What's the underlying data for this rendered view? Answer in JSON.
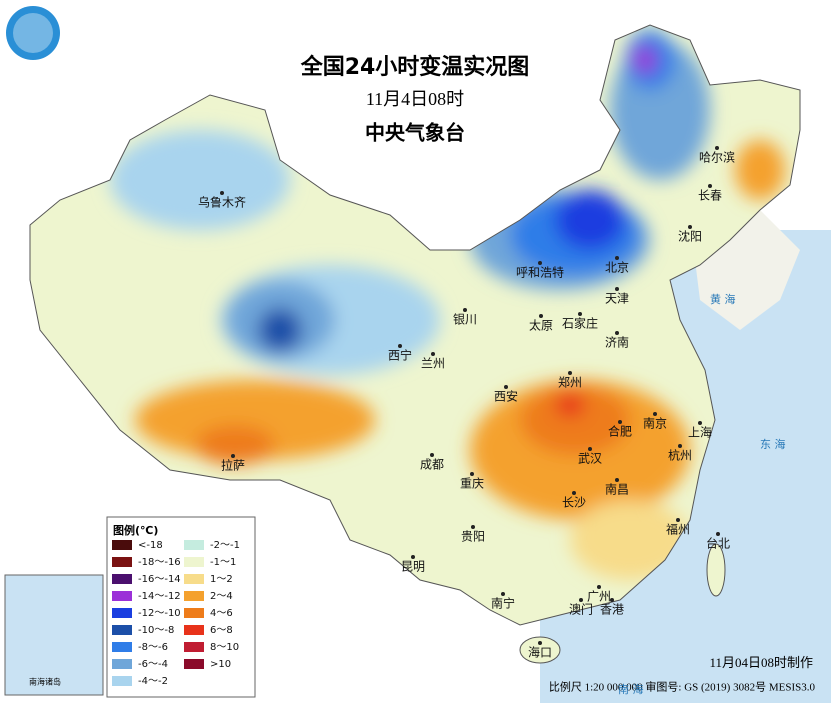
{
  "header": {
    "title": "全国24小时变温实况图",
    "date": "11月4日08时",
    "issuer": "中央气象台"
  },
  "legend": {
    "title": "图例(℃)",
    "items": [
      {
        "label": "<-18",
        "color": "#4a0c0c"
      },
      {
        "label": "-18～-16",
        "color": "#7a1212"
      },
      {
        "label": "-16～-14",
        "color": "#4b0f6e"
      },
      {
        "label": "-14～-12",
        "color": "#9b30d8"
      },
      {
        "label": "-12～-10",
        "color": "#1a3ee0"
      },
      {
        "label": "-10～-8",
        "color": "#1c4fa8"
      },
      {
        "label": "-8～-6",
        "color": "#2f7de8"
      },
      {
        "label": "-6～-4",
        "color": "#6fa6d9"
      },
      {
        "label": "-4～-2",
        "color": "#a9d4ee"
      },
      {
        "label": "-2～-1",
        "color": "#c5ecdf"
      },
      {
        "label": "-1～1",
        "color": "#eef5cf"
      },
      {
        "label": "1～2",
        "color": "#f7dc8a"
      },
      {
        "label": "2～4",
        "color": "#f4a12e"
      },
      {
        "label": "4～6",
        "color": "#ee7c1a"
      },
      {
        "label": "6～8",
        "color": "#e8321a"
      },
      {
        "label": "8～10",
        "color": "#c01d32"
      },
      {
        "label": ">10",
        "color": "#8b0a2a"
      }
    ]
  },
  "cities": [
    "乌鲁木齐",
    "呼和浩特",
    "北京",
    "天津",
    "石家庄",
    "太原",
    "银川",
    "西宁",
    "兰州",
    "济南",
    "郑州",
    "西安",
    "南京",
    "合肥",
    "上海",
    "杭州",
    "武汉",
    "成都",
    "重庆",
    "拉萨",
    "长沙",
    "南昌",
    "福州",
    "台北",
    "贵阳",
    "昆明",
    "南宁",
    "广州",
    "澳门",
    "香港",
    "海口",
    "哈尔滨",
    "长春",
    "沈阳"
  ],
  "map_labels": [
    "黄 海",
    "东 海",
    "南 海"
  ],
  "inset": {
    "label": "南海诸岛"
  },
  "footer": {
    "made": "11月04日08时制作",
    "scale": "比例尺 1:20 000 000 审图号: GS (2019) 3082号 MESIS3.0"
  }
}
